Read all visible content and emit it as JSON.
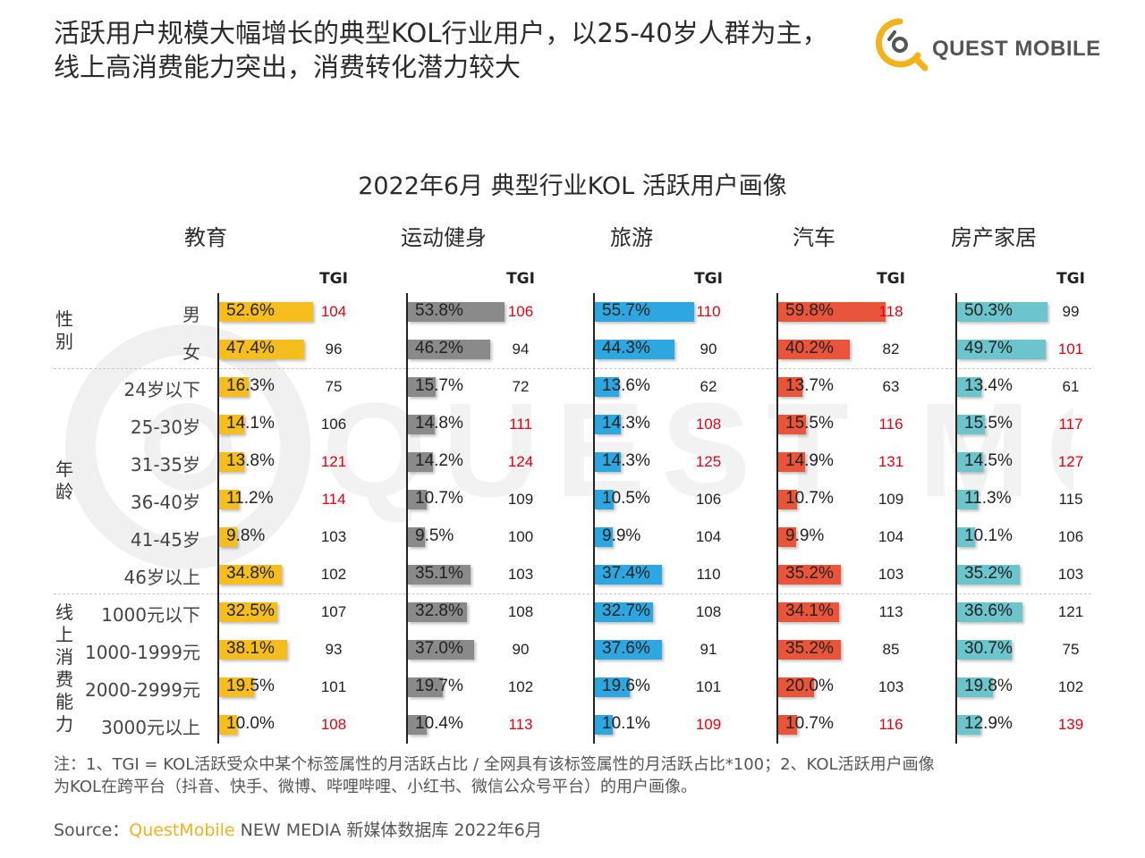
{
  "header": {
    "title_line1": "活跃用户规模大幅增长的典型KOL行业用户，以25-40岁人群为主，",
    "title_line2": "线上高消费能力突出，消费转化潜力较大",
    "logo_text": "QUEST MOBILE",
    "logo_color": "#f3b21b"
  },
  "chart_data": {
    "type": "bar",
    "title": "2022年6月 典型行业KOL 活跃用户画像",
    "tgi_label": "TGI",
    "tgi_highlight_color": "#e60012",
    "tgi_normal_color": "#222222",
    "group_labels": [
      "性别",
      "年龄",
      "线上消费能力"
    ],
    "rows": [
      "男",
      "女",
      "24岁以下",
      "25-30岁",
      "31-35岁",
      "36-40岁",
      "41-45岁",
      "46岁以上",
      "1000元以下",
      "1000-1999元",
      "2000-2999元",
      "3000元以上"
    ],
    "series": [
      {
        "name": "教育",
        "color": "#f5be1e",
        "values": [
          "52.6%",
          "47.4%",
          "16.3%",
          "14.1%",
          "13.8%",
          "11.2%",
          "9.8%",
          "34.8%",
          "32.5%",
          "38.1%",
          "19.5%",
          "10.0%"
        ],
        "tgi": [
          104,
          96,
          75,
          106,
          121,
          114,
          103,
          102,
          107,
          93,
          101,
          108
        ],
        "tgi_highlight": [
          true,
          false,
          false,
          false,
          true,
          true,
          false,
          false,
          false,
          false,
          false,
          true
        ]
      },
      {
        "name": "运动健身",
        "color": "#8a8a8a",
        "values": [
          "53.8%",
          "46.2%",
          "15.7%",
          "14.8%",
          "14.2%",
          "10.7%",
          "9.5%",
          "35.1%",
          "32.8%",
          "37.0%",
          "19.7%",
          "10.4%"
        ],
        "tgi": [
          106,
          94,
          72,
          111,
          124,
          109,
          100,
          103,
          108,
          90,
          102,
          113
        ],
        "tgi_highlight": [
          true,
          false,
          false,
          true,
          true,
          false,
          false,
          false,
          false,
          false,
          false,
          true
        ]
      },
      {
        "name": "旅游",
        "color": "#2ea7e0",
        "values": [
          "55.7%",
          "44.3%",
          "13.6%",
          "14.3%",
          "14.3%",
          "10.5%",
          "9.9%",
          "37.4%",
          "32.7%",
          "37.6%",
          "19.6%",
          "10.1%"
        ],
        "tgi": [
          110,
          90,
          62,
          108,
          125,
          106,
          104,
          110,
          108,
          91,
          101,
          109
        ],
        "tgi_highlight": [
          true,
          false,
          false,
          true,
          true,
          false,
          false,
          false,
          false,
          false,
          false,
          true
        ]
      },
      {
        "name": "汽车",
        "color": "#e8553a",
        "values": [
          "59.8%",
          "40.2%",
          "13.7%",
          "15.5%",
          "14.9%",
          "10.7%",
          "9.9%",
          "35.2%",
          "34.1%",
          "35.2%",
          "20.0%",
          "10.7%"
        ],
        "tgi": [
          118,
          82,
          63,
          116,
          131,
          109,
          104,
          103,
          113,
          85,
          103,
          116
        ],
        "tgi_highlight": [
          true,
          false,
          false,
          true,
          true,
          false,
          false,
          false,
          false,
          false,
          false,
          true
        ]
      },
      {
        "name": "房产家居",
        "color": "#6cc5cd",
        "values": [
          "50.3%",
          "49.7%",
          "13.4%",
          "15.5%",
          "14.5%",
          "11.3%",
          "10.1%",
          "35.2%",
          "36.6%",
          "30.7%",
          "19.8%",
          "12.9%"
        ],
        "tgi": [
          99,
          101,
          61,
          117,
          127,
          115,
          106,
          103,
          121,
          75,
          102,
          139
        ],
        "tgi_highlight": [
          false,
          true,
          false,
          true,
          true,
          false,
          false,
          false,
          false,
          false,
          false,
          true
        ]
      }
    ]
  },
  "footer": {
    "note_line1": "注：1、TGI = KOL活跃受众中某个标签属性的月活跃占比 / 全网具有该标签属性的月活跃占比*100；2、KOL活跃用户画像",
    "note_line2": "为KOL在跨平台（抖音、快手、微博、哔哩哔哩、小红书、微信公众号平台）的用户画像。",
    "source_prefix": "Source：",
    "source_brand": "QuestMobile",
    "source_suffix": " NEW MEDIA 新媒体数据库 2022年6月"
  }
}
